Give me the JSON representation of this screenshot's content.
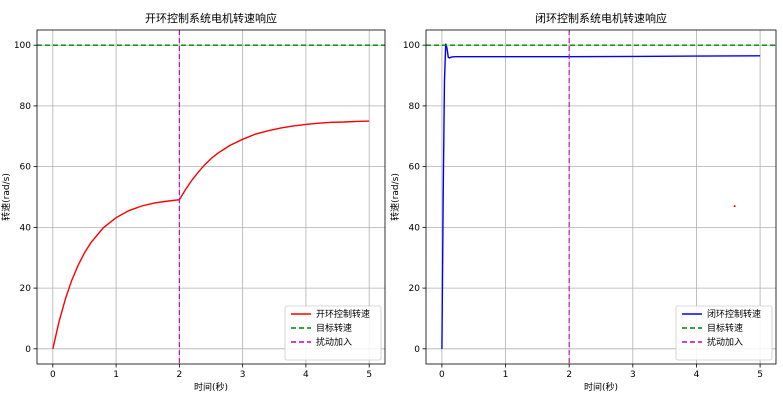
{
  "chart_data": [
    {
      "type": "line",
      "title": "开环控制系统电机转速响应",
      "xlabel": "时间(秒)",
      "ylabel": "转速(rad/s)",
      "xlim": [
        -0.25,
        5.25
      ],
      "ylim": [
        -5,
        105
      ],
      "xticks": [
        0,
        1,
        2,
        3,
        4,
        5
      ],
      "yticks": [
        0,
        20,
        40,
        60,
        80,
        100
      ],
      "grid": true,
      "legend_position": "bottom-right",
      "series": [
        {
          "name": "开环控制转速",
          "color": "#ff0000",
          "style": "solid",
          "x": [
            0,
            0.1,
            0.2,
            0.3,
            0.4,
            0.5,
            0.6,
            0.8,
            1.0,
            1.2,
            1.4,
            1.6,
            1.8,
            2.0,
            2.1,
            2.2,
            2.3,
            2.4,
            2.5,
            2.6,
            2.8,
            3.0,
            3.2,
            3.4,
            3.6,
            3.8,
            4.0,
            4.2,
            4.4,
            4.6,
            4.8,
            5.0
          ],
          "y": [
            0,
            9.1,
            16.5,
            22.6,
            27.5,
            31.6,
            34.9,
            39.9,
            43.2,
            45.5,
            47.0,
            48.0,
            48.6,
            49.1,
            52.5,
            55.6,
            58.2,
            60.6,
            62.6,
            64.3,
            67.0,
            69.0,
            70.7,
            71.8,
            72.7,
            73.4,
            73.9,
            74.3,
            74.6,
            74.7,
            74.9,
            75.0
          ]
        },
        {
          "name": "目标转速",
          "color": "#008000",
          "style": "dashed",
          "x": [
            -0.25,
            5.25
          ],
          "y": [
            100,
            100
          ]
        }
      ],
      "vlines": [
        {
          "name": "扰动加入",
          "x": 2,
          "color": "#bf00bf",
          "style": "dashed"
        }
      ]
    },
    {
      "type": "line",
      "title": "闭环控制系统电机转速响应",
      "xlabel": "时间(秒)",
      "ylabel": "转速(rad/s)",
      "xlim": [
        -0.25,
        5.25
      ],
      "ylim": [
        -5,
        105
      ],
      "xticks": [
        0,
        1,
        2,
        3,
        4,
        5
      ],
      "yticks": [
        0,
        20,
        40,
        60,
        80,
        100
      ],
      "grid": true,
      "legend_position": "bottom-right",
      "series": [
        {
          "name": "闭环控制转速",
          "color": "#0000ff",
          "style": "solid",
          "x": [
            0,
            0.02,
            0.04,
            0.06,
            0.08,
            0.1,
            0.12,
            0.15,
            0.2,
            0.5,
            1.0,
            2.0,
            3.0,
            4.0,
            5.0
          ],
          "y": [
            0,
            50,
            88,
            100.5,
            99,
            96,
            95.8,
            96.1,
            96.2,
            96.2,
            96.2,
            96.2,
            96.3,
            96.4,
            96.5
          ]
        },
        {
          "name": "目标转速",
          "color": "#008000",
          "style": "dashed",
          "x": [
            -0.25,
            5.25
          ],
          "y": [
            100,
            100
          ]
        }
      ],
      "vlines": [
        {
          "name": "扰动加入",
          "x": 2,
          "color": "#bf00bf",
          "style": "dashed"
        }
      ],
      "points": [
        {
          "x": 4.6,
          "y": 47,
          "color": "#ff0000"
        }
      ]
    }
  ]
}
